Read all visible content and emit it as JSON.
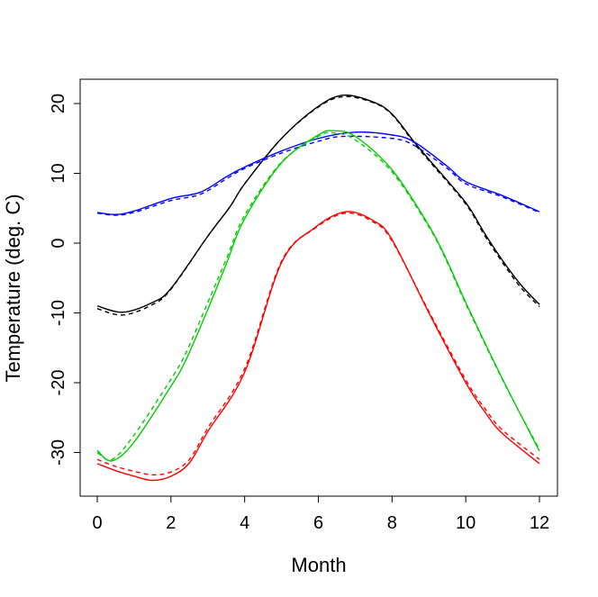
{
  "chart_data": {
    "type": "line",
    "title": "",
    "xlabel": "Month",
    "ylabel": "Temperature (deg. C)",
    "xlim": [
      -0.5,
      12.5
    ],
    "ylim": [
      -36,
      23.5
    ],
    "xticks": [
      0,
      2,
      4,
      6,
      8,
      10,
      12
    ],
    "yticks": [
      -30,
      -20,
      -10,
      0,
      10,
      20
    ],
    "grid": false,
    "legend": "none",
    "series": [
      {
        "color": "#000000",
        "style": "solid",
        "points": [
          [
            0,
            -9
          ],
          [
            0.7,
            -9.9
          ],
          [
            1.5,
            -8.5
          ],
          [
            2,
            -6.5
          ],
          [
            3,
            1
          ],
          [
            3.6,
            5.2
          ],
          [
            4,
            8.5
          ],
          [
            5,
            15
          ],
          [
            6,
            19.6
          ],
          [
            6.7,
            21.2
          ],
          [
            7.5,
            20.2
          ],
          [
            8,
            18.5
          ],
          [
            8.6,
            14.5
          ],
          [
            9,
            12
          ],
          [
            10,
            5.8
          ],
          [
            10.5,
            1.5
          ],
          [
            11,
            -2.5
          ],
          [
            11.5,
            -6
          ],
          [
            12,
            -8.8
          ]
        ]
      },
      {
        "color": "#000000",
        "style": "dashed",
        "points": [
          [
            0,
            -9.4
          ],
          [
            0.7,
            -10.3
          ],
          [
            1.5,
            -8.8
          ],
          [
            2,
            -6.6
          ],
          [
            3,
            1
          ],
          [
            3.6,
            5.2
          ],
          [
            4,
            8.5
          ],
          [
            5,
            15
          ],
          [
            6,
            19.5
          ],
          [
            6.7,
            21
          ],
          [
            7.5,
            20.1
          ],
          [
            8,
            18.4
          ],
          [
            8.6,
            14.3
          ],
          [
            9,
            11.8
          ],
          [
            10,
            5.6
          ],
          [
            10.5,
            1.2
          ],
          [
            11,
            -2.8
          ],
          [
            11.5,
            -6.4
          ],
          [
            12,
            -9.1
          ]
        ]
      },
      {
        "color": "#0000FF",
        "style": "solid",
        "points": [
          [
            0,
            4.4
          ],
          [
            0.5,
            4.1
          ],
          [
            1,
            4.6
          ],
          [
            2,
            6.4
          ],
          [
            2.8,
            7.3
          ],
          [
            3.5,
            9.5
          ],
          [
            4,
            10.9
          ],
          [
            5,
            13.2
          ],
          [
            6,
            15
          ],
          [
            7,
            15.9
          ],
          [
            8,
            15.5
          ],
          [
            8.6,
            14.5
          ],
          [
            9.5,
            11
          ],
          [
            10,
            8.8
          ],
          [
            11,
            6.8
          ],
          [
            12,
            4.5
          ]
        ]
      },
      {
        "color": "#0000FF",
        "style": "dashed",
        "points": [
          [
            0,
            4.3
          ],
          [
            0.5,
            4
          ],
          [
            1,
            4.4
          ],
          [
            2,
            6.1
          ],
          [
            2.8,
            7
          ],
          [
            3.5,
            9.2
          ],
          [
            4,
            10.7
          ],
          [
            5,
            12.9
          ],
          [
            6,
            14.6
          ],
          [
            6.7,
            15.3
          ],
          [
            8,
            15
          ],
          [
            8.6,
            14
          ],
          [
            9.5,
            10.7
          ],
          [
            10,
            8.5
          ],
          [
            11,
            6.6
          ],
          [
            12,
            4.4
          ]
        ]
      },
      {
        "color": "#00CD00",
        "style": "solid",
        "points": [
          [
            0,
            -29.7
          ],
          [
            0.4,
            -31.2
          ],
          [
            1,
            -28.5
          ],
          [
            2,
            -20.5
          ],
          [
            2.4,
            -16.8
          ],
          [
            3,
            -9.5
          ],
          [
            3.5,
            -3
          ],
          [
            4,
            3.5
          ],
          [
            5,
            11.5
          ],
          [
            6,
            15.5
          ],
          [
            6.4,
            16.1
          ],
          [
            7,
            15.3
          ],
          [
            8,
            10.5
          ],
          [
            9,
            2.5
          ],
          [
            9.5,
            -2.6
          ],
          [
            10,
            -8.5
          ],
          [
            11,
            -19.5
          ],
          [
            12,
            -29.8
          ]
        ]
      },
      {
        "color": "#00CD00",
        "style": "dashed",
        "points": [
          [
            0,
            -30
          ],
          [
            0.4,
            -31
          ],
          [
            1,
            -27.5
          ],
          [
            2,
            -19.5
          ],
          [
            2.4,
            -15.8
          ],
          [
            3,
            -8.5
          ],
          [
            3.5,
            -2.3
          ],
          [
            4,
            4
          ],
          [
            5,
            11.6
          ],
          [
            6,
            15.3
          ],
          [
            6.4,
            15.8
          ],
          [
            7,
            14.8
          ],
          [
            8,
            10.2
          ],
          [
            9,
            2.3
          ],
          [
            9.5,
            -2.8
          ],
          [
            10,
            -8.7
          ],
          [
            11,
            -19.6
          ],
          [
            12,
            -29.6
          ]
        ]
      },
      {
        "color": "#FF0000",
        "style": "solid",
        "points": [
          [
            0,
            -31.6
          ],
          [
            0.5,
            -32.6
          ],
          [
            1,
            -33.4
          ],
          [
            1.5,
            -34
          ],
          [
            2,
            -33.4
          ],
          [
            2.5,
            -31.5
          ],
          [
            3,
            -27
          ],
          [
            4,
            -18.5
          ],
          [
            5,
            -2.8
          ],
          [
            5.9,
            2.2
          ],
          [
            6.75,
            4.5
          ],
          [
            7.5,
            3.2
          ],
          [
            8,
            0.5
          ],
          [
            9,
            -10
          ],
          [
            10,
            -20
          ],
          [
            10.56,
            -24.5
          ],
          [
            11,
            -27.3
          ],
          [
            12,
            -31.6
          ]
        ]
      },
      {
        "color": "#FF0000",
        "style": "dashed",
        "points": [
          [
            0,
            -31
          ],
          [
            0.5,
            -32
          ],
          [
            1,
            -32.7
          ],
          [
            1.5,
            -33.2
          ],
          [
            2,
            -32.8
          ],
          [
            2.5,
            -31
          ],
          [
            3,
            -26.5
          ],
          [
            4,
            -18
          ],
          [
            5,
            -2.6
          ],
          [
            5.9,
            2.1
          ],
          [
            6.75,
            4.3
          ],
          [
            7.5,
            3
          ],
          [
            8,
            0.3
          ],
          [
            9,
            -9.8
          ],
          [
            10,
            -19.6
          ],
          [
            10.56,
            -24
          ],
          [
            11,
            -26.8
          ],
          [
            12,
            -31
          ]
        ]
      }
    ]
  }
}
